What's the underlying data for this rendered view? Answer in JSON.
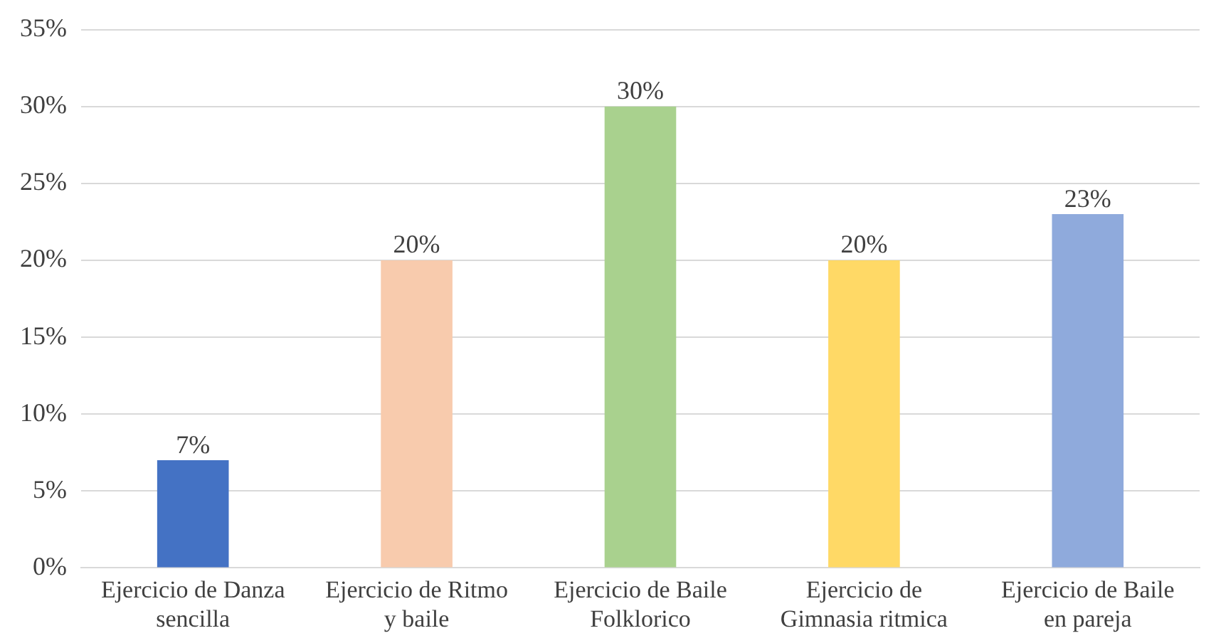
{
  "chart_data": {
    "type": "bar",
    "categories": [
      "Ejercicio de Danza\nsencilla",
      "Ejercicio de Ritmo\ny baile",
      "Ejercicio de Baile\nFolklorico",
      "Ejercicio de\nGimnasia ritmica",
      "Ejercicio de Baile\nen pareja"
    ],
    "values": [
      7,
      20,
      30,
      20,
      23
    ],
    "colors": [
      "#4472c4",
      "#f8cbad",
      "#a9d18e",
      "#ffd966",
      "#8faadc"
    ],
    "value_labels": [
      "7%",
      "20%",
      "30%",
      "20%",
      "23%"
    ],
    "ylim": [
      0,
      35
    ],
    "yticks": [
      {
        "value": 0,
        "label": "0%"
      },
      {
        "value": 5,
        "label": "5%"
      },
      {
        "value": 10,
        "label": "10%"
      },
      {
        "value": 15,
        "label": "15%"
      },
      {
        "value": 20,
        "label": "20%"
      },
      {
        "value": 25,
        "label": "25%"
      },
      {
        "value": 30,
        "label": "30%"
      },
      {
        "value": 35,
        "label": "35%"
      }
    ],
    "grid": "y",
    "legend": false
  }
}
